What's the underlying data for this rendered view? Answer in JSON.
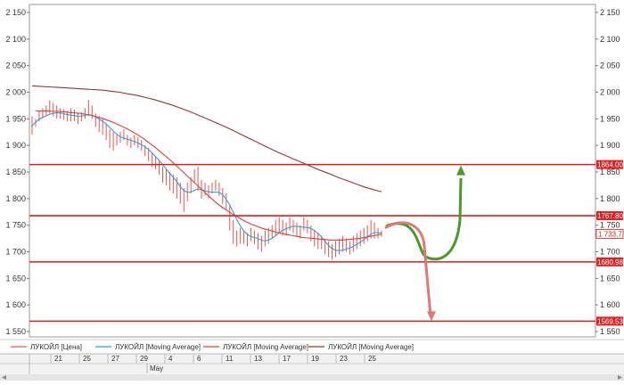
{
  "chart_data": {
    "type": "line",
    "ylim": [
      1540,
      2165
    ],
    "y_ticks": [
      1550,
      1600,
      1650,
      1700,
      1750,
      1800,
      1850,
      1900,
      1950,
      2000,
      2050,
      2100,
      2150
    ],
    "y_tick_labels": [
      "1 550",
      "1 600",
      "1 650",
      "1 700",
      "1 750",
      "1 800",
      "1 850",
      "1 900",
      "1 950",
      "2 000",
      "2 050",
      "2 100",
      "2 150"
    ],
    "x_ticks": [
      "21",
      "25",
      "27",
      "29",
      "4",
      "6",
      "11",
      "13",
      "17",
      "19",
      "23",
      "25"
    ],
    "x_secondary_label": "May",
    "grid": false,
    "legend_position": "bottom",
    "series": [
      {
        "name": "ЛУКОЙЛ [Цена]",
        "color": "#e8554f",
        "render": "hl-bars",
        "bars": [
          [
            1955,
            1920
          ],
          [
            1950,
            1935
          ],
          [
            1965,
            1945
          ],
          [
            1970,
            1950
          ],
          [
            1975,
            1955
          ],
          [
            1985,
            1960
          ],
          [
            1980,
            1955
          ],
          [
            1975,
            1950
          ],
          [
            1970,
            1950
          ],
          [
            1968,
            1948
          ],
          [
            1965,
            1945
          ],
          [
            1970,
            1945
          ],
          [
            1968,
            1946
          ],
          [
            1960,
            1940
          ],
          [
            1962,
            1945
          ],
          [
            1970,
            1950
          ],
          [
            1985,
            1955
          ],
          [
            1975,
            1950
          ],
          [
            1960,
            1935
          ],
          [
            1955,
            1925
          ],
          [
            1950,
            1920
          ],
          [
            1940,
            1910
          ],
          [
            1930,
            1895
          ],
          [
            1925,
            1890
          ],
          [
            1920,
            1900
          ],
          [
            1925,
            1905
          ],
          [
            1930,
            1910
          ],
          [
            1920,
            1900
          ],
          [
            1915,
            1895
          ],
          [
            1920,
            1900
          ],
          [
            1915,
            1895
          ],
          [
            1910,
            1890
          ],
          [
            1900,
            1880
          ],
          [
            1895,
            1870
          ],
          [
            1885,
            1860
          ],
          [
            1880,
            1855
          ],
          [
            1870,
            1845
          ],
          [
            1860,
            1830
          ],
          [
            1855,
            1825
          ],
          [
            1850,
            1815
          ],
          [
            1845,
            1810
          ],
          [
            1840,
            1800
          ],
          [
            1830,
            1790
          ],
          [
            1820,
            1775
          ],
          [
            1830,
            1795
          ],
          [
            1840,
            1810
          ],
          [
            1855,
            1830
          ],
          [
            1860,
            1815
          ],
          [
            1835,
            1800
          ],
          [
            1830,
            1805
          ],
          [
            1825,
            1800
          ],
          [
            1830,
            1810
          ],
          [
            1835,
            1815
          ],
          [
            1830,
            1805
          ],
          [
            1820,
            1790
          ],
          [
            1810,
            1780
          ],
          [
            1790,
            1740
          ],
          [
            1760,
            1715
          ],
          [
            1740,
            1710
          ],
          [
            1745,
            1715
          ],
          [
            1740,
            1715
          ],
          [
            1735,
            1710
          ],
          [
            1745,
            1720
          ],
          [
            1740,
            1715
          ],
          [
            1735,
            1705
          ],
          [
            1730,
            1700
          ],
          [
            1740,
            1710
          ],
          [
            1745,
            1715
          ],
          [
            1750,
            1725
          ],
          [
            1760,
            1730
          ],
          [
            1765,
            1735
          ],
          [
            1760,
            1730
          ],
          [
            1755,
            1730
          ],
          [
            1765,
            1740
          ],
          [
            1760,
            1735
          ],
          [
            1755,
            1730
          ],
          [
            1750,
            1725
          ],
          [
            1765,
            1740
          ],
          [
            1760,
            1735
          ],
          [
            1750,
            1720
          ],
          [
            1740,
            1710
          ],
          [
            1735,
            1705
          ],
          [
            1730,
            1705
          ],
          [
            1725,
            1695
          ],
          [
            1720,
            1690
          ],
          [
            1715,
            1685
          ],
          [
            1720,
            1690
          ],
          [
            1725,
            1695
          ],
          [
            1730,
            1700
          ],
          [
            1725,
            1700
          ],
          [
            1720,
            1695
          ],
          [
            1730,
            1700
          ],
          [
            1735,
            1705
          ],
          [
            1740,
            1710
          ],
          [
            1745,
            1715
          ],
          [
            1750,
            1720
          ],
          [
            1760,
            1725
          ],
          [
            1755,
            1725
          ],
          [
            1745,
            1725
          ],
          [
            1740,
            1728
          ]
        ]
      },
      {
        "name": "ЛУКОЙЛ [Moving Average]",
        "color": "#3a9bd5",
        "render": "line",
        "values": [
          1935,
          1942,
          1948,
          1952,
          1955,
          1958,
          1960,
          1961,
          1961,
          1960,
          1958,
          1957,
          1956,
          1955,
          1955,
          1956,
          1958,
          1957,
          1954,
          1950,
          1946,
          1941,
          1935,
          1928,
          1922,
          1917,
          1914,
          1912,
          1910,
          1908,
          1905,
          1902,
          1898,
          1893,
          1887,
          1880,
          1873,
          1865,
          1857,
          1849,
          1841,
          1833,
          1824,
          1816,
          1812,
          1812,
          1815,
          1818,
          1817,
          1815,
          1813,
          1812,
          1812,
          1812,
          1808,
          1800,
          1789,
          1776,
          1762,
          1750,
          1740,
          1733,
          1729,
          1727,
          1725,
          1722,
          1720,
          1722,
          1725,
          1730,
          1735,
          1740,
          1743,
          1746,
          1748,
          1748,
          1747,
          1746,
          1746,
          1744,
          1740,
          1735,
          1728,
          1720,
          1712,
          1706,
          1703,
          1702,
          1703,
          1705,
          1707,
          1710,
          1714,
          1718,
          1723,
          1728,
          1733,
          1736,
          1736,
          1735
        ]
      },
      {
        "name": "ЛУКОЙЛ [Moving Average]",
        "color": "#d94040",
        "render": "line",
        "values": [
          1965,
          1965,
          1965,
          1964,
          1964,
          1963,
          1962,
          1961,
          1960,
          1958,
          1956,
          1953,
          1950,
          1946,
          1942,
          1937,
          1932,
          1926,
          1920,
          1913,
          1905,
          1897,
          1888,
          1879,
          1870,
          1860,
          1850,
          1840,
          1830,
          1820,
          1810,
          1800,
          1791,
          1783,
          1776,
          1769,
          1763,
          1757,
          1752,
          1748,
          1744,
          1741,
          1738,
          1735,
          1733,
          1731,
          1729,
          1727,
          1726,
          1725,
          1724,
          1723,
          1722,
          1722,
          1722,
          1723,
          1724,
          1725,
          1727,
          1729,
          1731,
          1733
        ]
      },
      {
        "name": "ЛУКОЙЛ [Moving Average]",
        "color": "#8b3a3a",
        "render": "line",
        "values": [
          2012,
          2011,
          2010,
          2009,
          2008,
          2007,
          2006,
          2005,
          2004,
          2002,
          2000,
          1997,
          1994,
          1990,
          1986,
          1981,
          1976,
          1970,
          1964,
          1957,
          1950,
          1943,
          1936,
          1928,
          1920,
          1912,
          1904,
          1896,
          1888,
          1881,
          1874,
          1867,
          1860,
          1853,
          1847,
          1840,
          1834,
          1828,
          1822,
          1817,
          1813
        ]
      }
    ],
    "levels": [
      {
        "value": 1864.0,
        "label": "1864.00"
      },
      {
        "value": 1767.8,
        "label": "1767.80"
      },
      {
        "value": 1680.98,
        "label": "1680.98"
      },
      {
        "value": 1569.53,
        "label": "1569.53"
      }
    ],
    "last_price_label": "1 733,7",
    "last_price": 1733.7,
    "annotations": [
      {
        "type": "arrow-up",
        "color": "#4a9a2a",
        "target": 1864
      },
      {
        "type": "arrow-down",
        "color": "#e07878",
        "target": 1569.53
      }
    ]
  }
}
